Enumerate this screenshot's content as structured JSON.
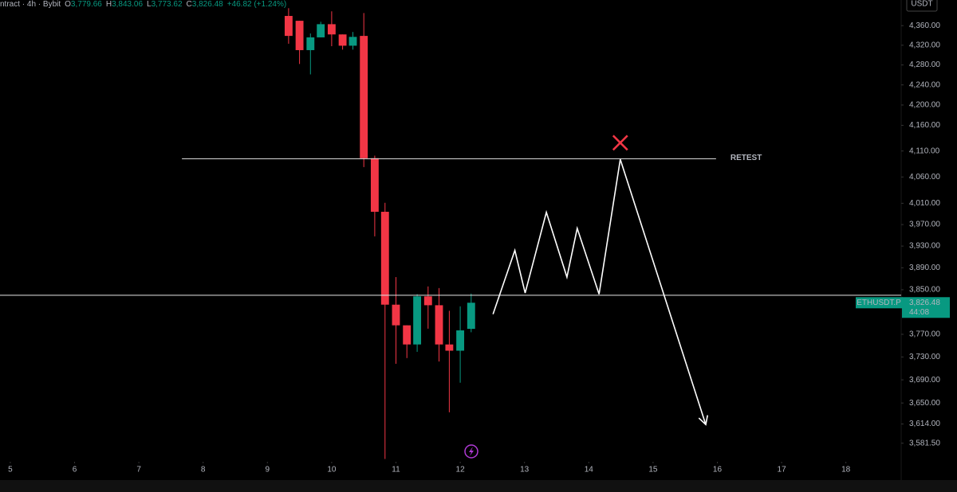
{
  "header": {
    "symbol": "ntract · 4h · Bybit",
    "ohlc": [
      {
        "key": "O",
        "text": "3,779.66"
      },
      {
        "key": "H",
        "text": "3,843.06"
      },
      {
        "key": "L",
        "text": "3,773.62"
      },
      {
        "key": "C",
        "text": "3,826.48"
      }
    ],
    "change": "+46.82 (+1.24%)"
  },
  "chart_data": {
    "type": "candlestick",
    "x": [
      9.33,
      9.5,
      9.67,
      9.83,
      10,
      10.17,
      10.33,
      10.5,
      10.67,
      10.83,
      11,
      11.17,
      11.33,
      11.5,
      11.67,
      11.83,
      12,
      12.17
    ],
    "open": [
      4380,
      4370,
      4310,
      4336,
      4363,
      4342,
      4319,
      4339,
      4096,
      3994,
      3823,
      3786,
      3752,
      3838,
      3822,
      3752,
      3741,
      3779.66
    ],
    "high": [
      4396,
      4370,
      4344,
      4368,
      4389.5,
      4342,
      4347,
      4386,
      4101,
      4011,
      3873,
      3786,
      3842,
      3856,
      3853,
      3812,
      3820,
      3843.06
    ],
    "low": [
      4323,
      4282,
      4261,
      4336,
      4318,
      4311,
      4311,
      4079,
      3948,
      3555,
      3718,
      3728,
      3739,
      3780,
      3722,
      3634,
      3685,
      3773.62
    ],
    "close": [
      4339,
      4310,
      4336,
      4363,
      4342,
      4319,
      4337,
      4096,
      3994,
      3823,
      3786,
      3752,
      3838,
      3822,
      3752,
      3741,
      3777,
      3826.48
    ],
    "up_color": "#089981",
    "down_color": "#f23645",
    "log_scale": true,
    "xlim": [
      4.84,
      18.86
    ],
    "xticks": [
      5,
      6,
      7,
      8,
      9,
      10,
      11,
      12,
      13,
      14,
      15,
      16,
      17,
      18
    ],
    "ylim": [
      3553,
      4413
    ],
    "yticks": [
      {
        "value": 4360,
        "label": "4,360.00"
      },
      {
        "value": 4320,
        "label": "4,320.00"
      },
      {
        "value": 4280,
        "label": "4,280.00"
      },
      {
        "value": 4240,
        "label": "4,240.00"
      },
      {
        "value": 4200,
        "label": "4,200.00"
      },
      {
        "value": 4160,
        "label": "4,160.00"
      },
      {
        "value": 4110,
        "label": "4,110.00"
      },
      {
        "value": 4060,
        "label": "4,060.00"
      },
      {
        "value": 4010,
        "label": "4,010.00"
      },
      {
        "value": 3970,
        "label": "3,970.00"
      },
      {
        "value": 3930,
        "label": "3,930.00"
      },
      {
        "value": 3890,
        "label": "3,890.00"
      },
      {
        "value": 3850,
        "label": "3,850.00"
      },
      {
        "value": 3770,
        "label": "3,770.00"
      },
      {
        "value": 3730,
        "label": "3,730.00"
      },
      {
        "value": 3690,
        "label": "3,690.00"
      },
      {
        "value": 3650,
        "label": "3,650.00"
      },
      {
        "value": 3614,
        "label": "3,614.00"
      },
      {
        "value": 3581.5,
        "label": "3,581.50"
      }
    ],
    "currency": "USDT",
    "levels": [
      {
        "value": 4095,
        "label": "RETEST",
        "x_start": 7.67,
        "x_end": 15.98
      },
      {
        "value": 3840
      }
    ],
    "projection": {
      "x": [
        12.51,
        12.85,
        13.01,
        13.34,
        13.66,
        13.82,
        14.16,
        14.49,
        15.82
      ],
      "values": [
        3806,
        3922,
        3844,
        3993,
        3873,
        3963,
        3842,
        4094,
        3613
      ]
    },
    "marker": {
      "x": 14.49,
      "value": 4126
    },
    "price_badge": {
      "symbol": "ETHUSDT.P",
      "price": {
        "value": 3826.48,
        "label": "3,826.48"
      },
      "countdown": "44:08"
    }
  }
}
